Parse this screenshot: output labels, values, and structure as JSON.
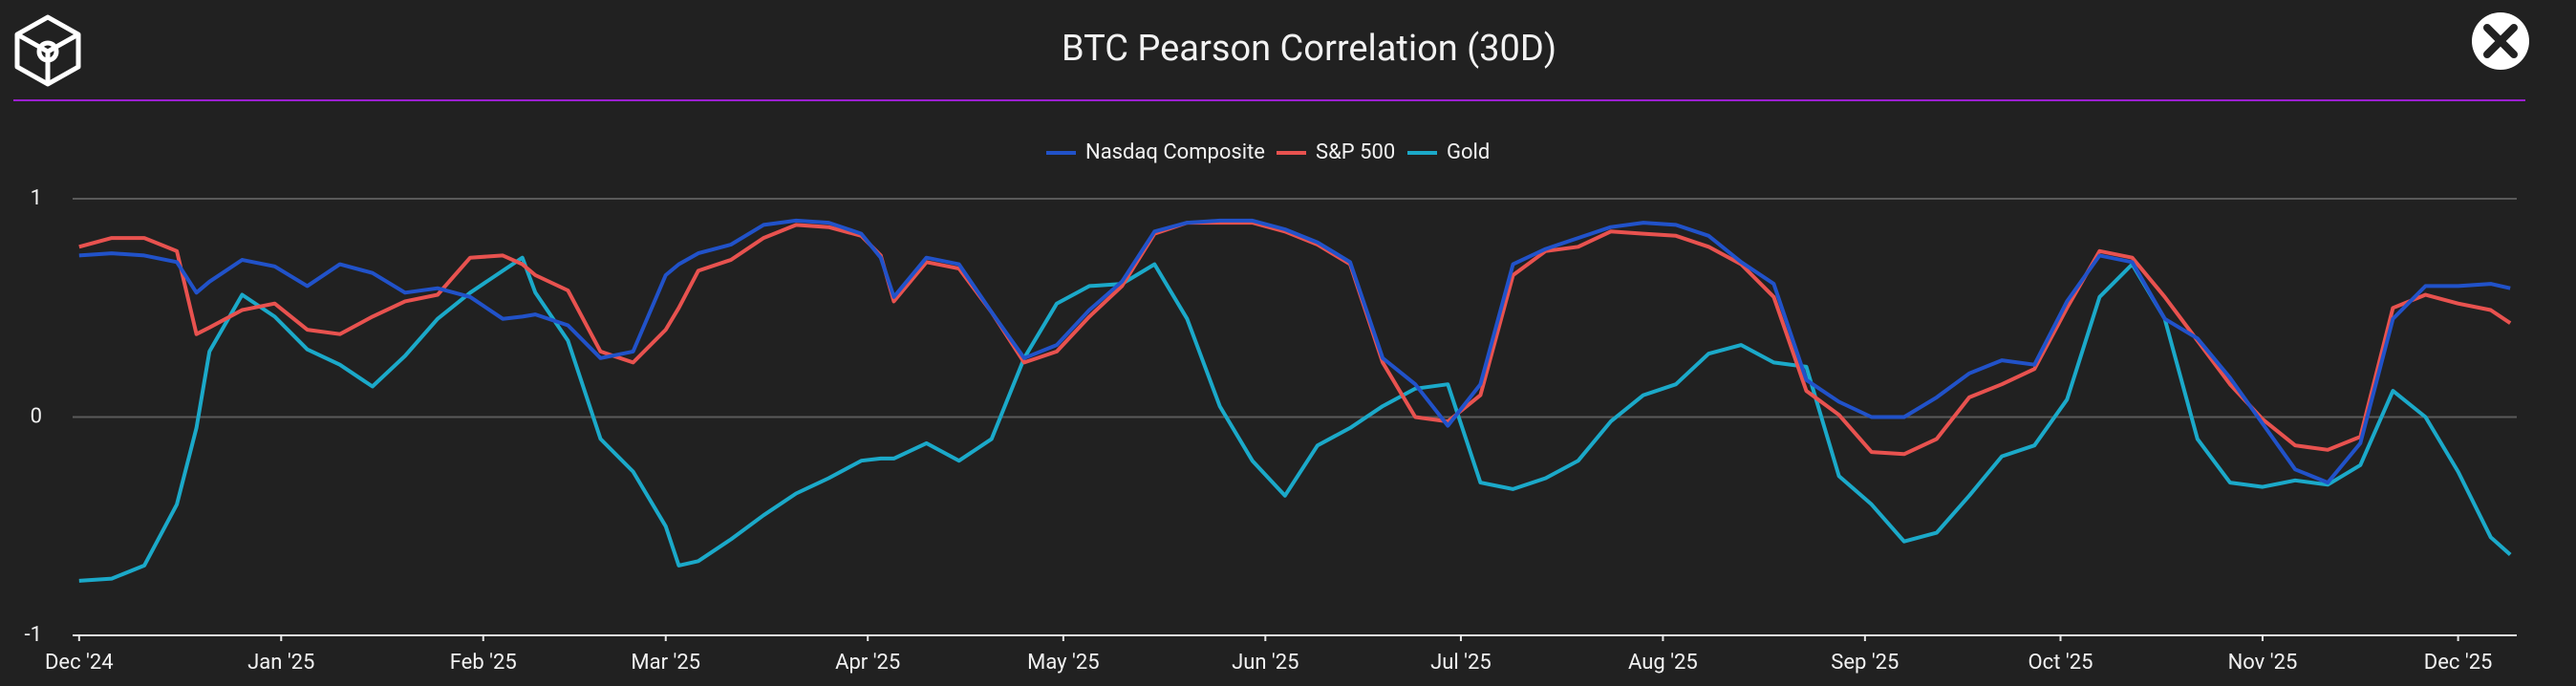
{
  "chart_data": {
    "type": "line",
    "title": "BTC Pearson Correlation (30D)",
    "x": [
      0,
      5,
      10,
      15,
      18,
      20,
      25,
      30,
      35,
      40,
      45,
      50,
      55,
      60,
      65,
      68,
      70,
      75,
      80,
      85,
      90,
      92,
      95,
      100,
      105,
      110,
      115,
      120,
      123,
      125,
      130,
      135,
      140,
      145,
      150,
      155,
      160,
      165,
      170,
      175,
      180,
      185,
      190,
      195,
      200,
      205,
      210,
      215,
      220,
      225,
      230,
      235,
      240,
      245,
      250,
      255,
      260,
      265,
      270,
      275,
      280,
      285,
      290,
      295,
      300,
      305,
      310,
      315,
      320,
      325,
      330,
      335,
      340,
      345,
      350,
      355,
      360,
      365,
      370,
      373
    ],
    "xlim": [
      -1,
      374
    ],
    "xticks": [
      {
        "value": 0,
        "label": "Dec '24"
      },
      {
        "value": 31,
        "label": "Jan '25"
      },
      {
        "value": 62,
        "label": "Feb '25"
      },
      {
        "value": 90,
        "label": "Mar '25"
      },
      {
        "value": 121,
        "label": "Apr '25"
      },
      {
        "value": 151,
        "label": "May '25"
      },
      {
        "value": 182,
        "label": "Jun '25"
      },
      {
        "value": 212,
        "label": "Jul '25"
      },
      {
        "value": 243,
        "label": "Aug '25"
      },
      {
        "value": 274,
        "label": "Sep '25"
      },
      {
        "value": 304,
        "label": "Oct '25"
      },
      {
        "value": 335,
        "label": "Nov '25"
      },
      {
        "value": 365,
        "label": "Dec '25"
      }
    ],
    "ylim": [
      -1,
      1
    ],
    "yticks": [
      -1,
      0,
      1
    ],
    "grid": true,
    "series": [
      {
        "name": "Nasdaq Composite",
        "color": "#2152c9",
        "values": [
          0.74,
          0.75,
          0.74,
          0.71,
          0.57,
          0.62,
          0.72,
          0.69,
          0.6,
          0.7,
          0.66,
          0.57,
          0.59,
          0.55,
          0.45,
          0.46,
          0.47,
          0.42,
          0.27,
          0.3,
          0.65,
          0.7,
          0.75,
          0.79,
          0.88,
          0.9,
          0.89,
          0.84,
          0.73,
          0.55,
          0.73,
          0.7,
          0.48,
          0.27,
          0.33,
          0.49,
          0.62,
          0.85,
          0.89,
          0.9,
          0.9,
          0.86,
          0.8,
          0.71,
          0.27,
          0.15,
          -0.04,
          0.15,
          0.7,
          0.77,
          0.82,
          0.87,
          0.89,
          0.88,
          0.83,
          0.71,
          0.61,
          0.17,
          0.07,
          0.0,
          0.0,
          0.09,
          0.2,
          0.26,
          0.24,
          0.53,
          0.74,
          0.71,
          0.45,
          0.36,
          0.18,
          -0.03,
          -0.24,
          -0.3,
          -0.12,
          0.45,
          0.6,
          0.6,
          0.61,
          0.59
        ]
      },
      {
        "name": "S&P 500",
        "color": "#e8524f",
        "values": [
          0.78,
          0.82,
          0.82,
          0.76,
          0.38,
          0.41,
          0.49,
          0.52,
          0.4,
          0.38,
          0.46,
          0.53,
          0.56,
          0.73,
          0.74,
          0.7,
          0.65,
          0.58,
          0.3,
          0.25,
          0.4,
          0.5,
          0.67,
          0.72,
          0.82,
          0.88,
          0.87,
          0.83,
          0.74,
          0.53,
          0.71,
          0.68,
          0.48,
          0.25,
          0.3,
          0.46,
          0.6,
          0.84,
          0.89,
          0.89,
          0.89,
          0.85,
          0.79,
          0.7,
          0.25,
          0.0,
          -0.02,
          0.1,
          0.65,
          0.76,
          0.78,
          0.85,
          0.84,
          0.83,
          0.78,
          0.7,
          0.55,
          0.12,
          0.01,
          -0.16,
          -0.17,
          -0.1,
          0.09,
          0.15,
          0.22,
          0.5,
          0.76,
          0.73,
          0.55,
          0.35,
          0.15,
          -0.01,
          -0.13,
          -0.15,
          -0.09,
          0.5,
          0.56,
          0.52,
          0.49,
          0.43
        ]
      },
      {
        "name": "Gold",
        "color": "#1ba9c9",
        "values": [
          -0.75,
          -0.74,
          -0.68,
          -0.4,
          -0.05,
          0.3,
          0.56,
          0.46,
          0.31,
          0.24,
          0.14,
          0.28,
          0.45,
          0.57,
          0.67,
          0.73,
          0.57,
          0.35,
          -0.1,
          -0.25,
          -0.5,
          -0.68,
          -0.66,
          -0.56,
          -0.45,
          -0.35,
          -0.28,
          -0.2,
          -0.19,
          -0.19,
          -0.12,
          -0.2,
          -0.1,
          0.27,
          0.52,
          0.6,
          0.61,
          0.7,
          0.45,
          0.05,
          -0.2,
          -0.36,
          -0.13,
          -0.05,
          0.05,
          0.13,
          0.15,
          -0.3,
          -0.33,
          -0.28,
          -0.2,
          -0.02,
          0.1,
          0.15,
          0.29,
          0.33,
          0.25,
          0.23,
          -0.27,
          -0.4,
          -0.57,
          -0.53,
          -0.36,
          -0.18,
          -0.13,
          0.08,
          0.55,
          0.7,
          0.45,
          -0.1,
          -0.3,
          -0.32,
          -0.29,
          -0.31,
          -0.22,
          0.12,
          0.0,
          -0.25,
          -0.55,
          -0.63
        ]
      }
    ]
  }
}
